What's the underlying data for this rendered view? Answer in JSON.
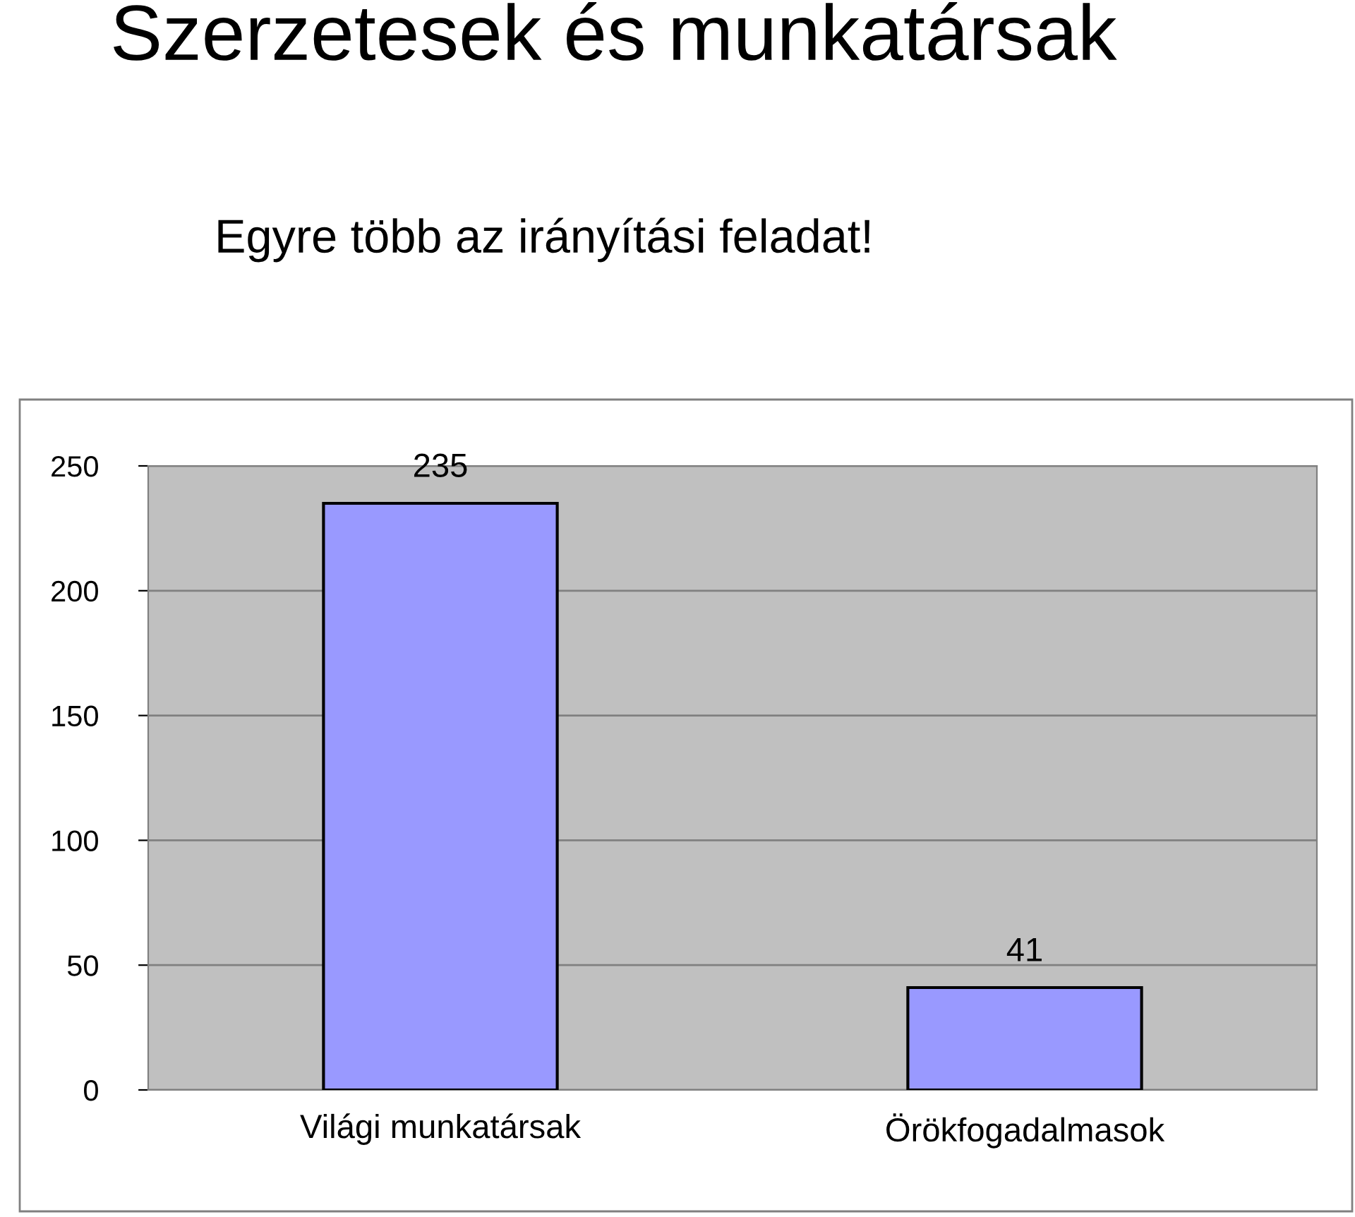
{
  "chart_data": {
    "type": "bar",
    "title": "Szerzetesek és munkatársak",
    "subtitle": "Egyre több az irányítási feladat!",
    "categories": [
      "Világi munkatársak",
      "Örökfogadalmasok"
    ],
    "values": [
      235,
      41
    ],
    "color": "#9999ff",
    "ylim": [
      0,
      250
    ],
    "yticks": [
      0,
      50,
      100,
      150,
      200,
      250
    ],
    "grid": "y",
    "data_labels": true
  }
}
